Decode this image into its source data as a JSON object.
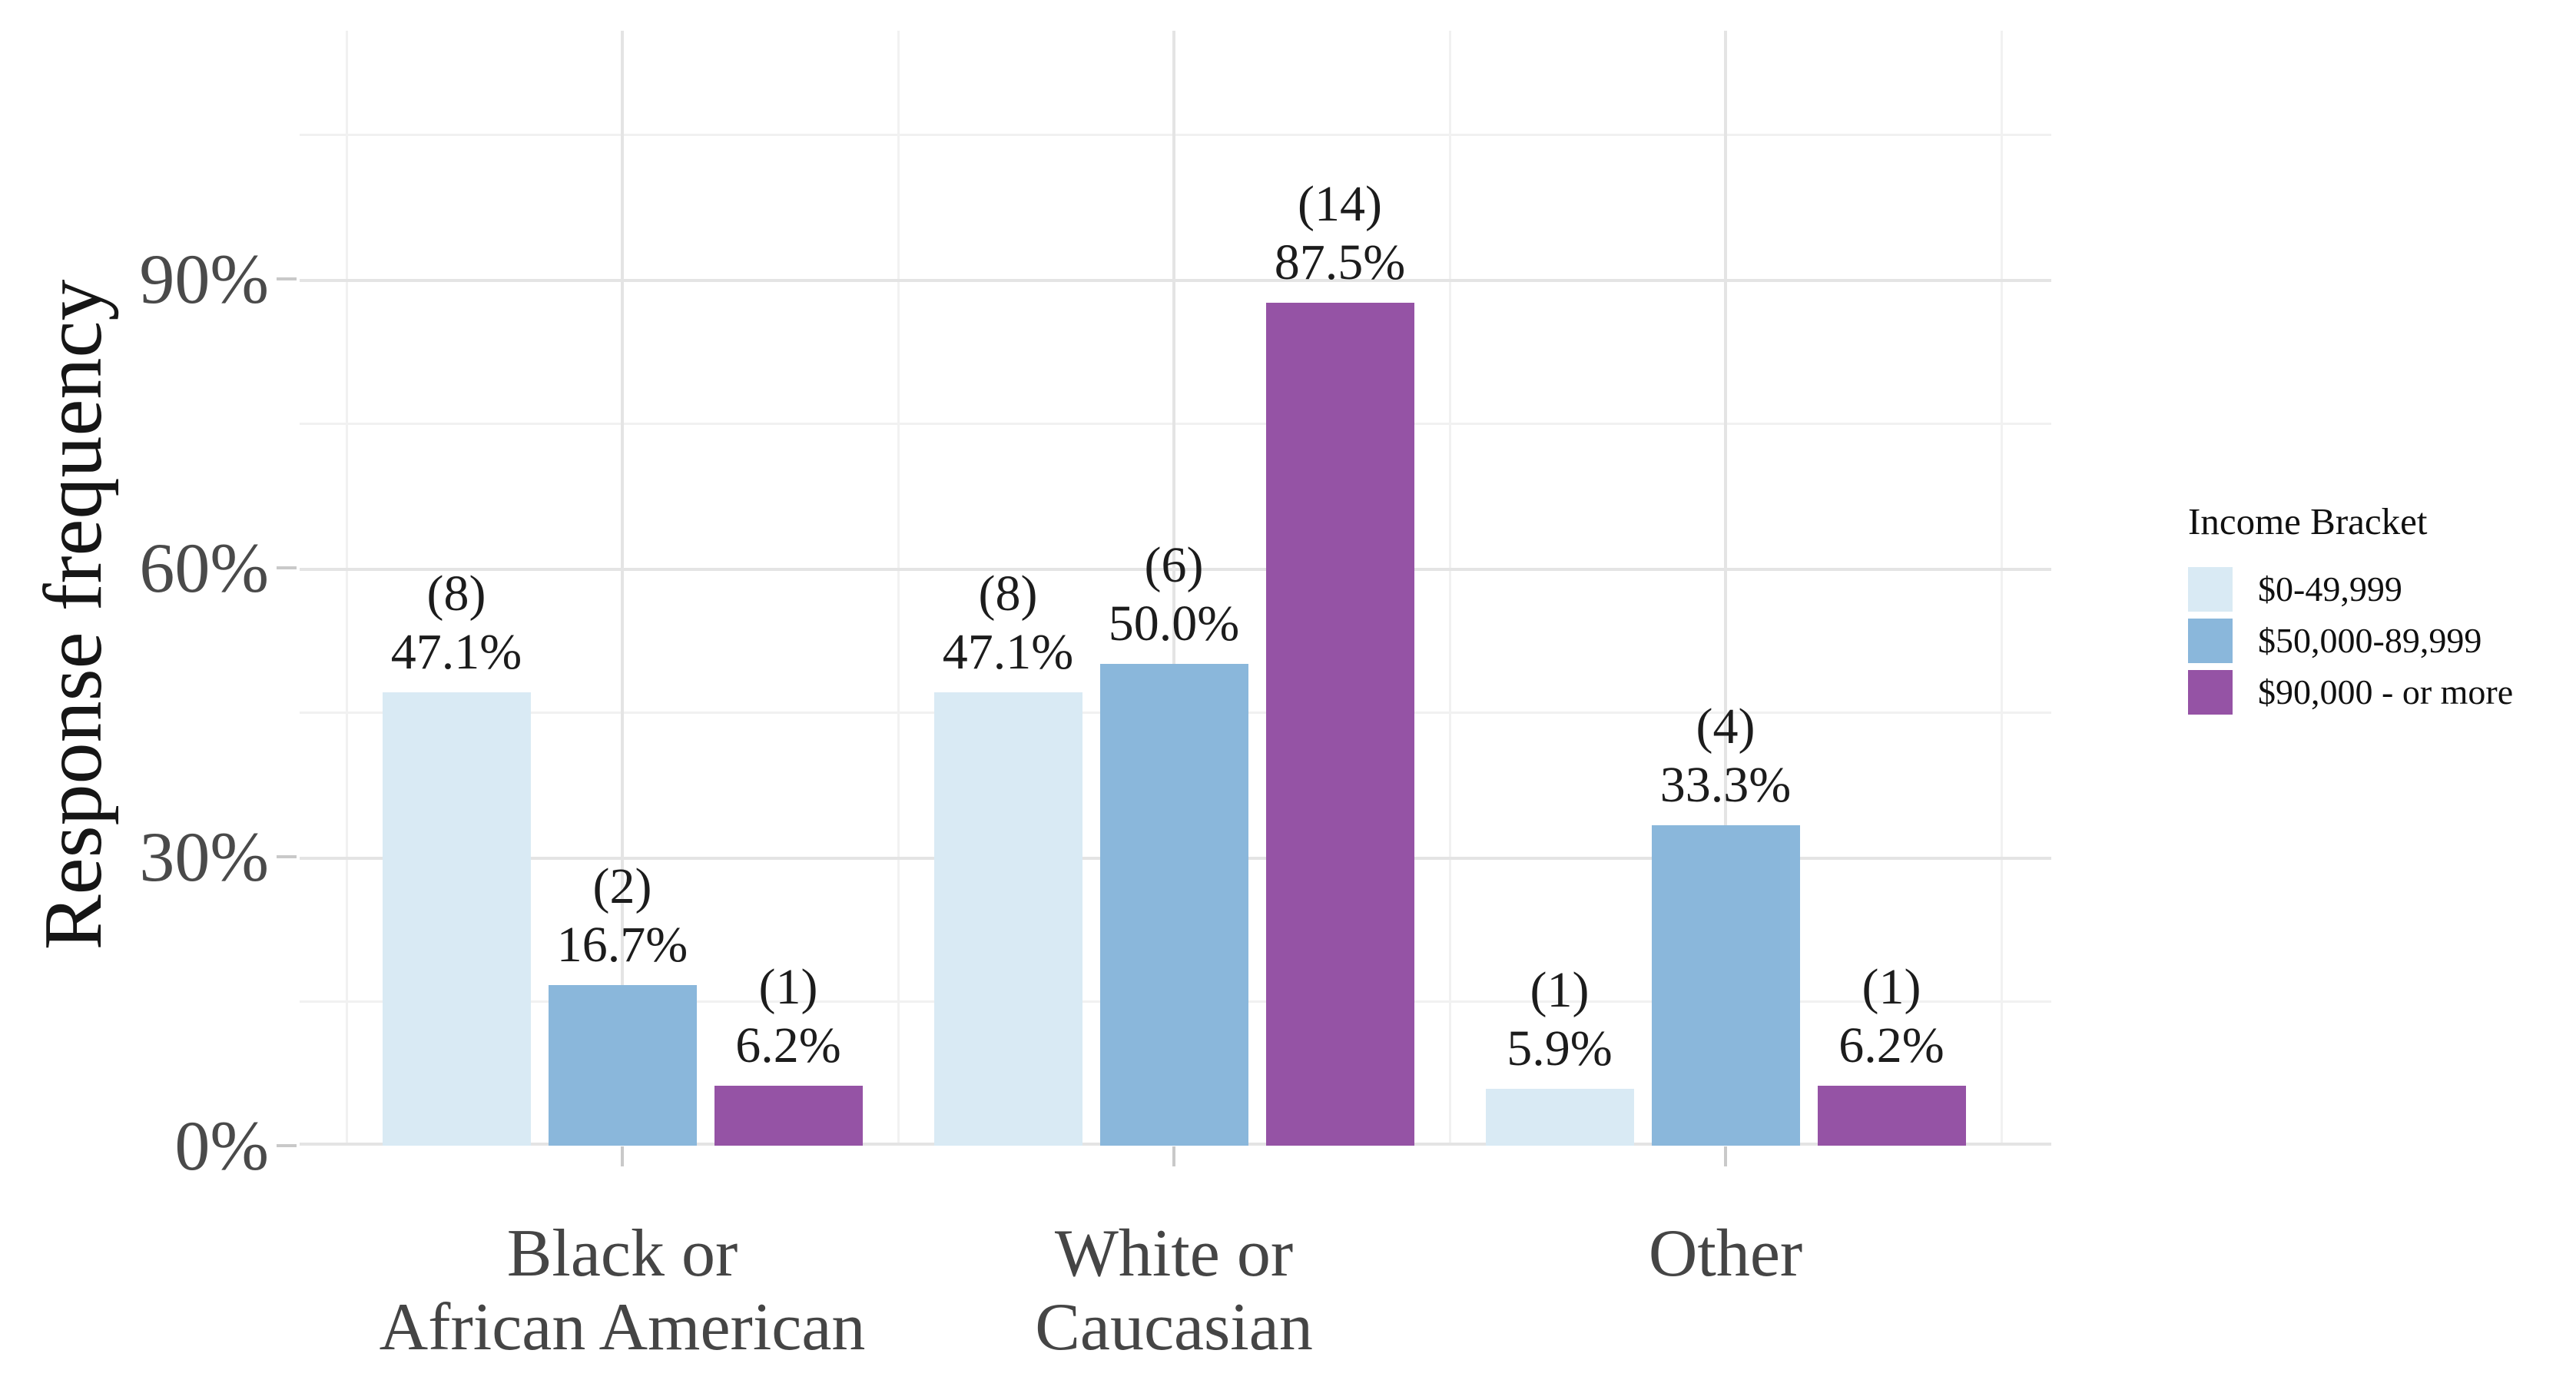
{
  "figure": {
    "background": "#ffffff"
  },
  "chart_data": {
    "type": "bar",
    "title": "",
    "y_axis": {
      "label": "Response frequency",
      "tick_labels": [
        "0%",
        "30%",
        "60%",
        "90%"
      ],
      "tick_values": [
        0,
        30,
        60,
        90
      ],
      "minor_tick_values": [
        15,
        45,
        75,
        105
      ],
      "unit": "percent",
      "ylim": [
        0,
        115
      ]
    },
    "x_axis": {
      "categories": [
        "Black or\nAfrican American",
        "White or\nCaucasian",
        "Other"
      ]
    },
    "legend": {
      "title": "Income Bracket",
      "position": "right"
    },
    "series": [
      {
        "name": "$0-49,999",
        "color": "#d9eaf4",
        "counts": [
          8,
          8,
          1
        ],
        "values": [
          47.1,
          47.1,
          5.9
        ],
        "count_labels": [
          "(8)",
          "(8)",
          "(1)"
        ],
        "pct_labels": [
          "47.1%",
          "47.1%",
          "5.9%"
        ]
      },
      {
        "name": "$50,000-89,999",
        "color": "#8ab7db",
        "counts": [
          2,
          6,
          4
        ],
        "values": [
          16.7,
          50.0,
          33.3
        ],
        "count_labels": [
          "(2)",
          "(6)",
          "(4)"
        ],
        "pct_labels": [
          "16.7%",
          "50.0%",
          "33.3%"
        ]
      },
      {
        "name": "$90,000 - or more",
        "color": "#9553a5",
        "counts": [
          1,
          14,
          1
        ],
        "values": [
          6.2,
          87.5,
          6.2
        ],
        "count_labels": [
          "(1)",
          "(14)",
          "(1)"
        ],
        "pct_labels": [
          "6.2%",
          "87.5%",
          "6.2%"
        ]
      }
    ],
    "grid": {
      "major": true,
      "minor": true
    },
    "colors": {
      "major_gridline": "#e4e4e4",
      "minor_gridline": "#f1f1f1",
      "tick_mark": "#c9c9c9",
      "axis_text": "#4a4a4a",
      "label_text": "#1c1c1c"
    }
  }
}
